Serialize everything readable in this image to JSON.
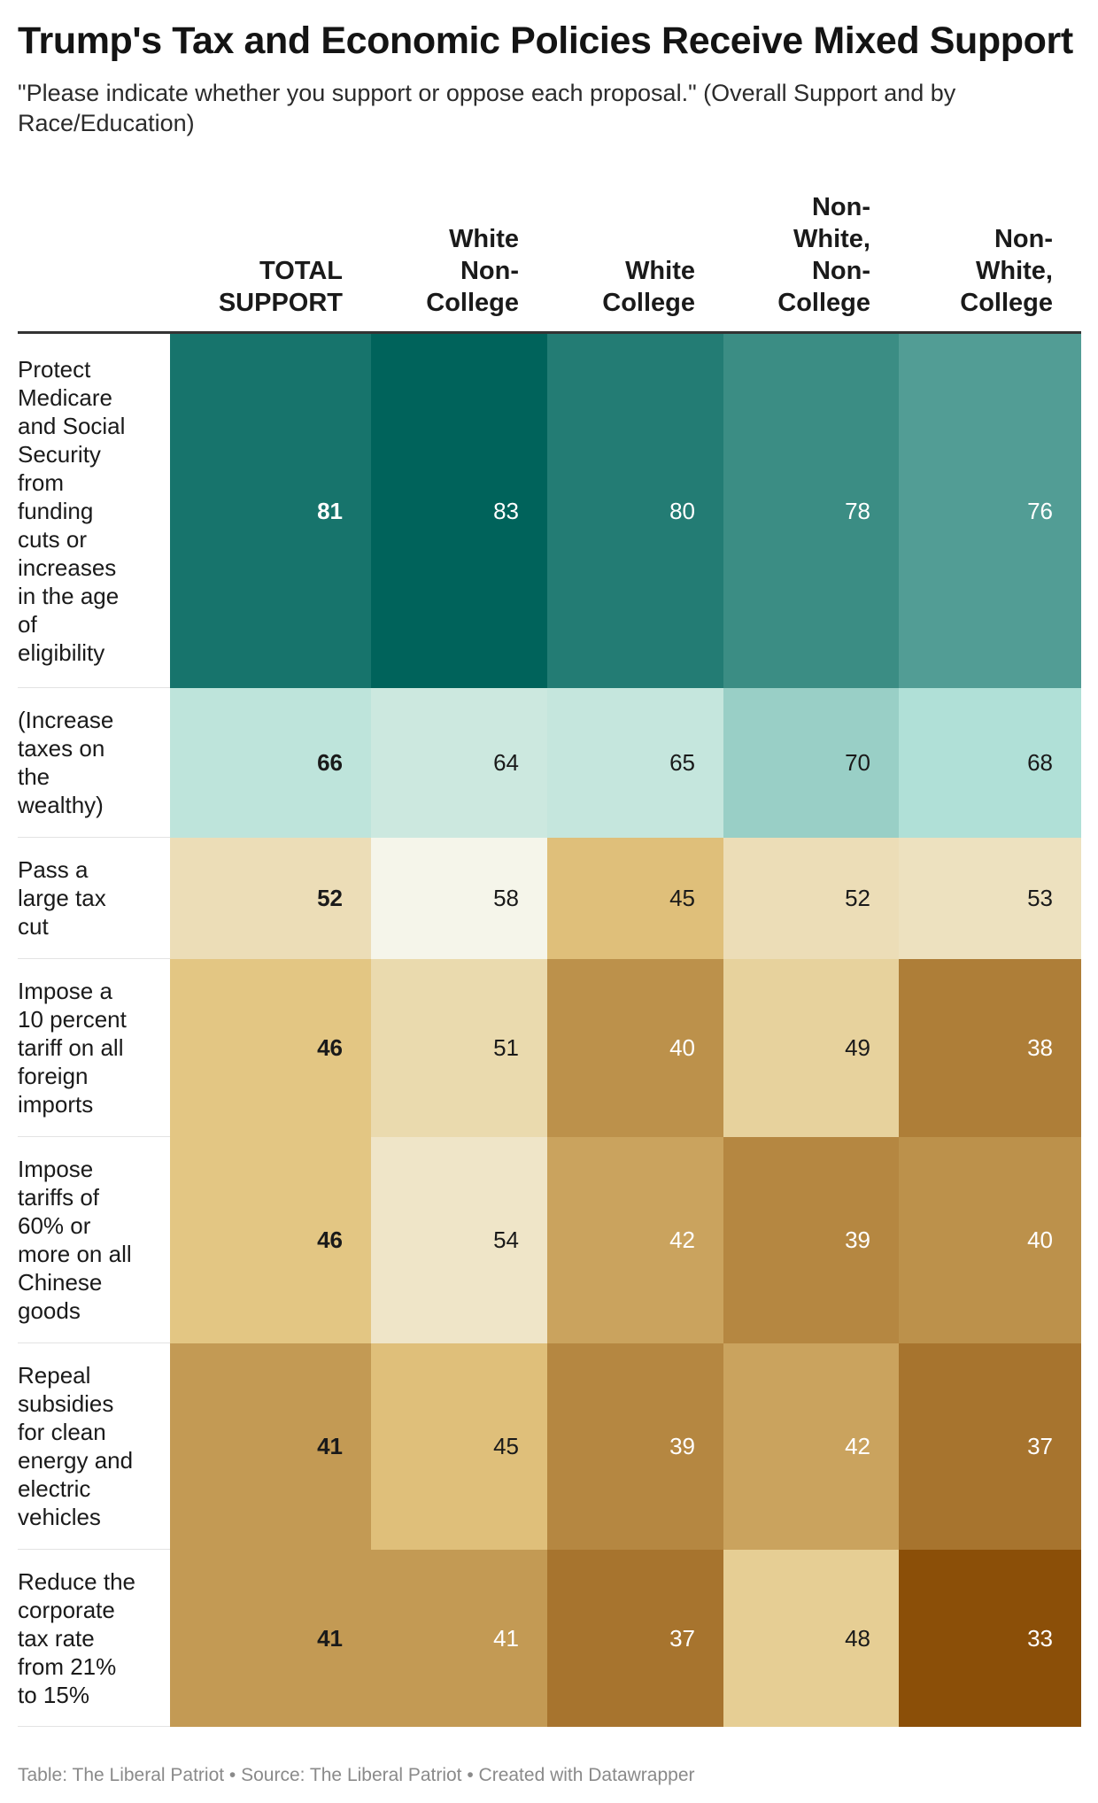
{
  "title": "Trump's Tax and Economic Policies Receive Mixed Support",
  "subtitle": "\"Please indicate whether you support or oppose each proposal.\" (Overall Support and by Race/Education)",
  "footer": "Table: The Liberal Patriot • Source: The Liberal Patriot • Created with Datawrapper",
  "chart_data": {
    "type": "table",
    "columns": [
      [
        "TOTAL",
        "SUPPORT"
      ],
      [
        "White",
        "Non-",
        "College"
      ],
      [
        "White",
        "College"
      ],
      [
        "Non-",
        "White,",
        "Non-",
        "College"
      ],
      [
        "Non-",
        "White,",
        "College"
      ]
    ],
    "rows": [
      {
        "label": [
          "Protect",
          "Medicare",
          "and Social",
          "Security",
          "from",
          "funding",
          "cuts or",
          "increases",
          "in the age",
          "of",
          "eligibility"
        ],
        "values": [
          81,
          83,
          80,
          78,
          76
        ]
      },
      {
        "label": [
          "(Increase",
          "taxes on",
          "the",
          "wealthy)"
        ],
        "values": [
          66,
          64,
          65,
          70,
          68
        ]
      },
      {
        "label": [
          "Pass a",
          "large tax",
          "cut"
        ],
        "values": [
          52,
          58,
          45,
          52,
          53
        ]
      },
      {
        "label": [
          "Impose a",
          "10 percent",
          "tariff on all",
          "foreign",
          "imports"
        ],
        "values": [
          46,
          51,
          40,
          49,
          38
        ]
      },
      {
        "label": [
          "Impose",
          "tariffs of",
          "60% or",
          "more on all",
          "Chinese",
          "goods"
        ],
        "values": [
          46,
          54,
          42,
          39,
          40
        ]
      },
      {
        "label": [
          "Repeal",
          "subsidies",
          "for clean",
          "energy and",
          "electric",
          "vehicles"
        ],
        "values": [
          41,
          45,
          39,
          42,
          37
        ]
      },
      {
        "label": [
          "Reduce the",
          "corporate",
          "tax rate",
          "from 21%",
          "to 15%"
        ],
        "values": [
          41,
          41,
          37,
          48,
          33
        ]
      }
    ],
    "color_scale": {
      "low_color": "#8b4f08",
      "mid_color": "#f5f5ea",
      "high_color": "#00635b",
      "low_value": 33,
      "mid_value": 58,
      "high_value": 83
    }
  }
}
